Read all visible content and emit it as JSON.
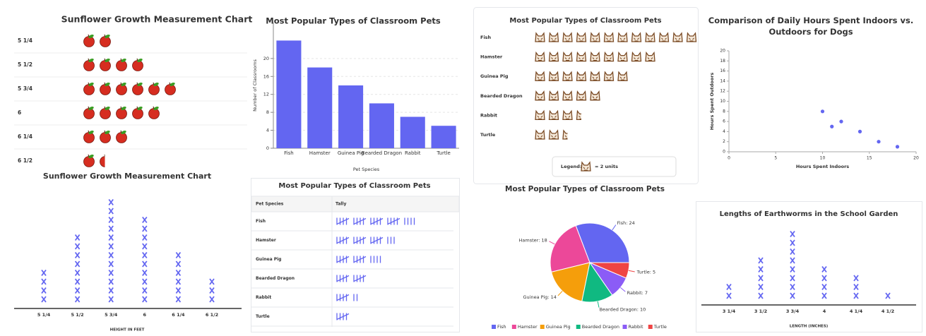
{
  "chart_data": [
    {
      "type": "pictograph",
      "title": "Sunflower Growth Measurement Chart",
      "categories": [
        "5 1/4",
        "5 1/2",
        "5 3/4",
        "6",
        "6 1/4",
        "6 1/2"
      ],
      "values": [
        2,
        4,
        6,
        5,
        3,
        1.5
      ],
      "color": "#d62d20"
    },
    {
      "type": "bar",
      "title": "Most Popular Types of Classroom Pets",
      "xlabel": "Pet Species",
      "ylabel": "Number of Classrooms",
      "categories": [
        "Fish",
        "Hamster",
        "Guinea Pig",
        "Bearded Dragon",
        "Rabbit",
        "Turtle"
      ],
      "values": [
        24,
        18,
        14,
        10,
        7,
        5
      ],
      "color": "#6366f1",
      "ylim": [
        0,
        28
      ],
      "yticks": [
        0,
        4,
        8,
        12,
        16,
        20
      ],
      "grid": true
    },
    {
      "type": "pictograph",
      "title": "Most Popular Types of Classroom Pets",
      "categories": [
        "Fish",
        "Hamster",
        "Guinea Pig",
        "Bearded Dragon",
        "Rabbit",
        "Turtle"
      ],
      "values": [
        24,
        18,
        14,
        10,
        7,
        5
      ],
      "unit": 2,
      "legend_title": "Legend:",
      "unit_label": "= 2 units",
      "color": "#7a4a24"
    },
    {
      "type": "scatter",
      "title": "Comparison of Daily Hours Spent Indoors vs. Outdoors for Dogs",
      "xlabel": "Hours Spent Indoors",
      "ylabel": "Hours Spent Outdoors",
      "x": [
        10,
        11,
        12,
        14,
        16,
        18
      ],
      "values": [
        8,
        5,
        6,
        4,
        2,
        1
      ],
      "color": "#6366f1",
      "xlim": [
        0,
        20
      ],
      "xticks": [
        0,
        5,
        10,
        15,
        20
      ],
      "ylim": [
        0,
        20
      ],
      "yticks": [
        0,
        2,
        4,
        6,
        8,
        10,
        12,
        14,
        16,
        18,
        20
      ]
    },
    {
      "type": "dot_plot",
      "title": "Sunflower Growth Measurement Chart",
      "xlabel": "HEIGHT IN FEET",
      "categories": [
        "5 1/4",
        "5 1/2",
        "5 3/4",
        "6",
        "6 1/4",
        "6 1/2"
      ],
      "values": [
        4,
        8,
        12,
        10,
        6,
        3
      ],
      "color": "#6366f1"
    },
    {
      "type": "pie",
      "title": "Most Popular Types of Classroom Pets",
      "categories": [
        "Fish",
        "Hamster",
        "Guinea Pig",
        "Bearded Dragon",
        "Rabbit",
        "Turtle"
      ],
      "values": [
        24,
        18,
        14,
        10,
        7,
        5
      ],
      "value_labels": [
        "Fish: 24",
        "Hamster: 18",
        "Guinea Pig: 14",
        "Bearded Dragon: 10",
        "Rabbit: 7",
        "Turtle: 5"
      ],
      "colors": [
        "#6366f1",
        "#ec4899",
        "#f59e0b",
        "#10b981",
        "#8b5cf6",
        "#ef4444"
      ]
    },
    {
      "type": "dot_plot",
      "title": "Lengths of Earthworms in the School Garden",
      "xlabel": "LENGTH (INCHES)",
      "categories": [
        "3 1/4",
        "3 1/2",
        "3 3/4",
        "4",
        "4 1/4",
        "4 1/2"
      ],
      "values": [
        2,
        5,
        8,
        4,
        3,
        1
      ],
      "color": "#6366f1"
    }
  ],
  "tally_table": {
    "title": "Most Popular Types of Classroom Pets",
    "columns": [
      "Pet Species",
      "Tally"
    ],
    "rows": [
      [
        "Fish",
        24
      ],
      [
        "Hamster",
        18
      ],
      [
        "Guinea Pig",
        14
      ],
      [
        "Bearded Dragon",
        10
      ],
      [
        "Rabbit",
        7
      ],
      [
        "Turtle",
        5
      ]
    ],
    "color": "#6366f1"
  }
}
